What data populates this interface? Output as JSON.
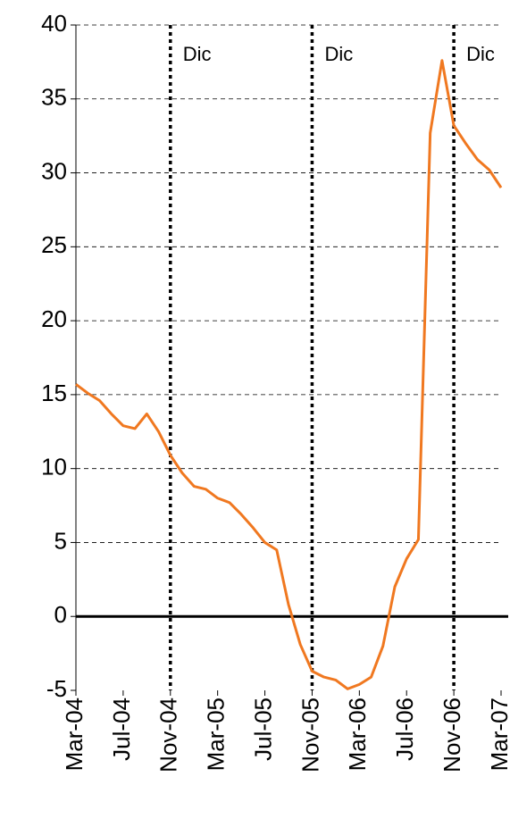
{
  "chart_data": {
    "type": "line",
    "categories": [
      "Mar-04",
      null,
      null,
      null,
      "Jul-04",
      null,
      null,
      null,
      "Nov-04",
      null,
      null,
      null,
      "Mar-05",
      null,
      null,
      null,
      "Jul-05",
      null,
      null,
      null,
      "Nov-05",
      null,
      null,
      null,
      "Mar-06",
      null,
      null,
      null,
      "Jul-06",
      null,
      null,
      null,
      "Nov-06",
      null,
      null,
      null,
      "Mar-07"
    ],
    "series": [
      {
        "color": "#f07820",
        "values": [
          15.7,
          15.1,
          14.6,
          13.7,
          12.9,
          12.7,
          13.7,
          12.5,
          10.9,
          9.7,
          8.8,
          8.6,
          8.0,
          7.7,
          6.9,
          6.0,
          5.0,
          4.5,
          0.8,
          -1.9,
          -3.7,
          -4.1,
          -4.3,
          -4.9,
          -4.6,
          -4.1,
          -2.0,
          2.0,
          3.9,
          5.2,
          32.7,
          37.6,
          33.2,
          32.0,
          30.9,
          30.2,
          29.0
        ]
      }
    ],
    "ylim": [
      -5,
      40
    ],
    "yticks": [
      -5,
      0,
      5,
      10,
      15,
      20,
      25,
      30,
      35,
      40
    ],
    "grid": true,
    "zero_line": true,
    "annotations": [
      {
        "x": "Nov-04",
        "label": "Dic"
      },
      {
        "x": "Nov-05",
        "label": "Dic"
      },
      {
        "x": "Nov-06",
        "label": "Dic"
      }
    ]
  }
}
